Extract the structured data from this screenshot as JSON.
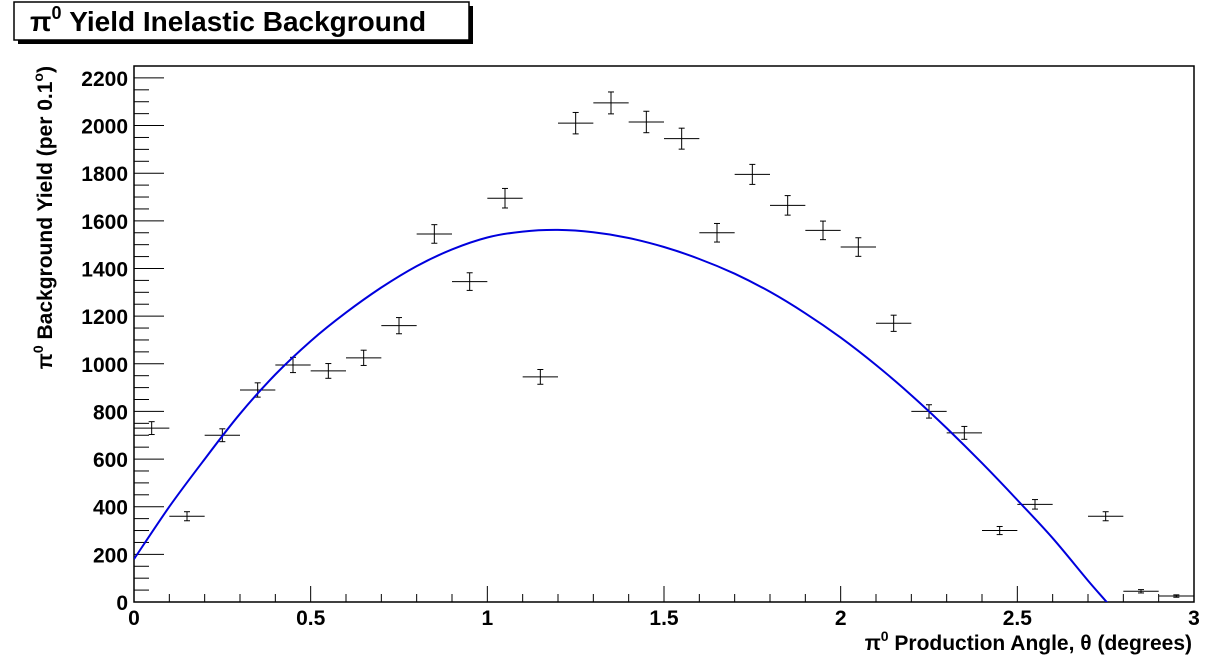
{
  "chart_data": {
    "type": "scatter",
    "title_base": "π",
    "title_sup": "0",
    "title_rest": " Yield Inelastic Background",
    "xlabel_base": "π",
    "xlabel_sup": "0",
    "xlabel_rest": " Production Angle, θ (degrees)",
    "ylabel_base": "π",
    "ylabel_sup": "0",
    "ylabel_rest": " Background Yield (per 0.1",
    "ylabel_sup2": "o",
    "ylabel_end": ")",
    "xlim": [
      0,
      3
    ],
    "ylim": [
      0,
      2250
    ],
    "x_ticks": [
      {
        "value": 0,
        "label": "0"
      },
      {
        "value": 0.5,
        "label": "0.5"
      },
      {
        "value": 1,
        "label": "1"
      },
      {
        "value": 1.5,
        "label": "1.5"
      },
      {
        "value": 2,
        "label": "2"
      },
      {
        "value": 2.5,
        "label": "2.5"
      },
      {
        "value": 3,
        "label": "3"
      }
    ],
    "y_ticks": [
      {
        "value": 0,
        "label": "0"
      },
      {
        "value": 200,
        "label": "200"
      },
      {
        "value": 400,
        "label": "400"
      },
      {
        "value": 600,
        "label": "600"
      },
      {
        "value": 800,
        "label": "800"
      },
      {
        "value": 1000,
        "label": "1000"
      },
      {
        "value": 1200,
        "label": "1200"
      },
      {
        "value": 1400,
        "label": "1400"
      },
      {
        "value": 1600,
        "label": "1600"
      },
      {
        "value": 1800,
        "label": "1800"
      },
      {
        "value": 2000,
        "label": "2000"
      },
      {
        "value": 2200,
        "label": "2200"
      }
    ],
    "x_bin_halfwidth": 0.05,
    "points": [
      {
        "x": 0.05,
        "y": 730,
        "err": 27
      },
      {
        "x": 0.15,
        "y": 360,
        "err": 19
      },
      {
        "x": 0.25,
        "y": 700,
        "err": 27
      },
      {
        "x": 0.35,
        "y": 890,
        "err": 30
      },
      {
        "x": 0.45,
        "y": 995,
        "err": 32
      },
      {
        "x": 0.55,
        "y": 970,
        "err": 31
      },
      {
        "x": 0.65,
        "y": 1025,
        "err": 32
      },
      {
        "x": 0.75,
        "y": 1160,
        "err": 34
      },
      {
        "x": 0.85,
        "y": 1545,
        "err": 39
      },
      {
        "x": 0.95,
        "y": 1345,
        "err": 37
      },
      {
        "x": 1.05,
        "y": 1695,
        "err": 41
      },
      {
        "x": 1.15,
        "y": 945,
        "err": 31
      },
      {
        "x": 1.25,
        "y": 2010,
        "err": 45
      },
      {
        "x": 1.35,
        "y": 2095,
        "err": 46
      },
      {
        "x": 1.45,
        "y": 2015,
        "err": 45
      },
      {
        "x": 1.55,
        "y": 1945,
        "err": 44
      },
      {
        "x": 1.65,
        "y": 1550,
        "err": 39
      },
      {
        "x": 1.75,
        "y": 1795,
        "err": 42
      },
      {
        "x": 1.85,
        "y": 1665,
        "err": 41
      },
      {
        "x": 1.95,
        "y": 1560,
        "err": 39
      },
      {
        "x": 2.05,
        "y": 1490,
        "err": 39
      },
      {
        "x": 2.15,
        "y": 1170,
        "err": 34
      },
      {
        "x": 2.25,
        "y": 800,
        "err": 28
      },
      {
        "x": 2.35,
        "y": 710,
        "err": 27
      },
      {
        "x": 2.45,
        "y": 300,
        "err": 17
      },
      {
        "x": 2.55,
        "y": 410,
        "err": 20
      },
      {
        "x": 2.75,
        "y": 360,
        "err": 19
      },
      {
        "x": 2.85,
        "y": 45,
        "err": 7
      },
      {
        "x": 2.95,
        "y": 25,
        "err": 5
      }
    ],
    "fit_curve": {
      "color": "#0000dd",
      "points": [
        {
          "x": 0.0,
          "y": 180
        },
        {
          "x": 0.1,
          "y": 400
        },
        {
          "x": 0.2,
          "y": 600
        },
        {
          "x": 0.3,
          "y": 790
        },
        {
          "x": 0.4,
          "y": 955
        },
        {
          "x": 0.5,
          "y": 1095
        },
        {
          "x": 0.6,
          "y": 1215
        },
        {
          "x": 0.7,
          "y": 1320
        },
        {
          "x": 0.8,
          "y": 1410
        },
        {
          "x": 0.9,
          "y": 1480
        },
        {
          "x": 1.0,
          "y": 1530
        },
        {
          "x": 1.1,
          "y": 1555
        },
        {
          "x": 1.2,
          "y": 1562
        },
        {
          "x": 1.3,
          "y": 1552
        },
        {
          "x": 1.4,
          "y": 1528
        },
        {
          "x": 1.5,
          "y": 1490
        },
        {
          "x": 1.6,
          "y": 1440
        },
        {
          "x": 1.7,
          "y": 1378
        },
        {
          "x": 1.8,
          "y": 1302
        },
        {
          "x": 1.9,
          "y": 1212
        },
        {
          "x": 2.0,
          "y": 1110
        },
        {
          "x": 2.1,
          "y": 995
        },
        {
          "x": 2.2,
          "y": 868
        },
        {
          "x": 2.3,
          "y": 730
        },
        {
          "x": 2.4,
          "y": 583
        },
        {
          "x": 2.5,
          "y": 428
        },
        {
          "x": 2.6,
          "y": 268
        },
        {
          "x": 2.7,
          "y": 90
        },
        {
          "x": 2.8,
          "y": -85
        },
        {
          "x": 2.9,
          "y": -300
        },
        {
          "x": 2.93,
          "y": -370
        }
      ]
    },
    "grid": false,
    "legend": "none"
  }
}
